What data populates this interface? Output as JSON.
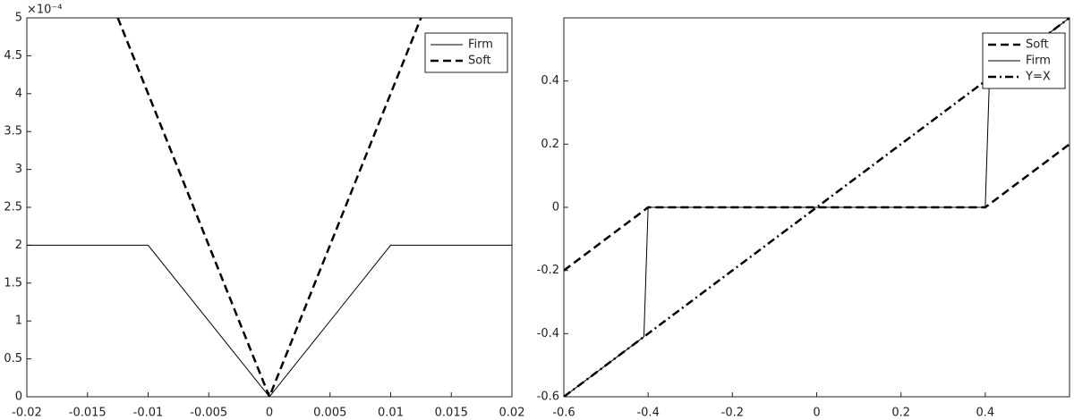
{
  "chart_data": [
    {
      "type": "line",
      "y_exponent": "×10⁻⁴",
      "xlim": [
        -0.02,
        0.02
      ],
      "xticks": [
        -0.02,
        -0.015,
        -0.01,
        -0.005,
        0,
        0.005,
        0.01,
        0.015,
        0.02
      ],
      "ylim": [
        0,
        5
      ],
      "yticks": [
        0,
        0.5,
        1,
        1.5,
        2,
        2.5,
        3,
        3.5,
        4,
        4.5,
        5
      ],
      "grid": false,
      "legend": "northeast",
      "series": [
        {
          "name": "Firm",
          "color": "#000000",
          "dash": "solid",
          "width": 1,
          "x": [
            -0.02,
            -0.01,
            0,
            0.01,
            0.02
          ],
          "values": [
            2,
            2,
            0,
            2,
            2
          ]
        },
        {
          "name": "Soft",
          "color": "#000000",
          "dash": "dashed",
          "width": 2.5,
          "x": [
            -0.0125,
            0,
            0.0125
          ],
          "values": [
            5,
            0,
            5
          ]
        }
      ]
    },
    {
      "type": "line",
      "xlim": [
        -0.6,
        0.6
      ],
      "xticks": [
        -0.6,
        -0.4,
        -0.2,
        0,
        0.2,
        0.4
      ],
      "ylim": [
        -0.6,
        0.6
      ],
      "yticks": [
        -0.6,
        -0.4,
        -0.2,
        0,
        0.2,
        0.4
      ],
      "grid": false,
      "legend": "northeast",
      "series": [
        {
          "name": "Soft",
          "color": "#000000",
          "dash": "dashed",
          "width": 2.5,
          "x": [
            -0.6,
            -0.4,
            0.4,
            0.6
          ],
          "values": [
            -0.2,
            0,
            0,
            0.2
          ]
        },
        {
          "name": "Firm",
          "color": "#000000",
          "dash": "solid",
          "width": 1,
          "x": [
            -0.6,
            -0.41,
            -0.4,
            0.4,
            0.41,
            0.6
          ],
          "values": [
            -0.6,
            -0.41,
            0,
            0,
            0.41,
            0.6
          ]
        },
        {
          "name": "Y=X",
          "color": "#000000",
          "dash": "dashdot",
          "width": 2.5,
          "x": [
            -0.6,
            0.6
          ],
          "values": [
            -0.6,
            0.6
          ]
        }
      ]
    }
  ]
}
